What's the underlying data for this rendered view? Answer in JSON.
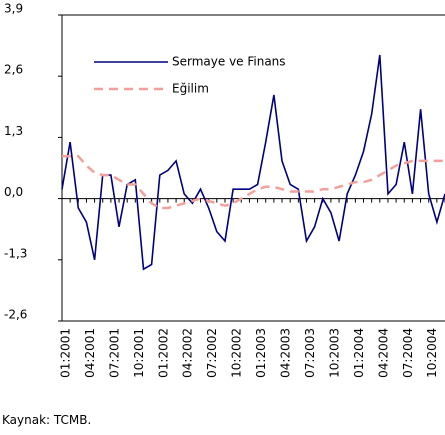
{
  "chart_data": {
    "type": "line",
    "source": "Kaynak: TCMB.",
    "categories": [
      "01:2001",
      null,
      null,
      "04:2001",
      null,
      null,
      "07:2001",
      null,
      null,
      "10:2001",
      null,
      null,
      "01:2002",
      null,
      null,
      "04:2002",
      null,
      null,
      "07:2002",
      null,
      null,
      "10:2002",
      null,
      null,
      "01:2003",
      null,
      null,
      "04:2003",
      null,
      null,
      "07:2003",
      null,
      null,
      "10:2003",
      null,
      null,
      "01:2004",
      null,
      null,
      "04:2004",
      null,
      null,
      "07:2004",
      null,
      null,
      "10:2004",
      null,
      null
    ],
    "series": [
      {
        "name": "Sermaye ve Finans",
        "color": "#000080",
        "dash": false,
        "values": [
          0.2,
          1.2,
          -0.2,
          -0.5,
          -1.3,
          0.5,
          0.5,
          -0.6,
          0.3,
          0.4,
          -1.5,
          -1.4,
          0.5,
          0.6,
          0.8,
          0.1,
          -0.1,
          0.2,
          -0.2,
          -0.7,
          -0.9,
          0.2,
          0.2,
          0.2,
          0.3,
          1.2,
          2.2,
          0.8,
          0.3,
          0.2,
          -0.9,
          -0.6,
          0.0,
          -0.3,
          -0.9,
          0.1,
          0.5,
          1.0,
          1.8,
          3.05,
          0.1,
          0.3,
          1.2,
          0.1,
          1.9,
          0.1,
          -0.5,
          0.1
        ]
      },
      {
        "name": "Eğilim",
        "color": "#f4a09a",
        "dash": true,
        "values": [
          0.9,
          0.9,
          0.9,
          0.7,
          0.55,
          0.5,
          0.5,
          0.4,
          0.3,
          0.3,
          0.1,
          -0.1,
          -0.2,
          -0.2,
          -0.15,
          -0.1,
          -0.05,
          0.0,
          -0.05,
          -0.1,
          -0.15,
          -0.1,
          0.0,
          0.1,
          0.2,
          0.25,
          0.25,
          0.2,
          0.15,
          0.15,
          0.15,
          0.15,
          0.2,
          0.2,
          0.25,
          0.3,
          0.35,
          0.35,
          0.4,
          0.5,
          0.6,
          0.7,
          0.75,
          0.8,
          0.8,
          0.8,
          0.8,
          0.8
        ]
      }
    ],
    "ylim": [
      -2.6,
      3.9
    ],
    "yticks": [
      {
        "value": -2.6,
        "label": "-2,6"
      },
      {
        "value": -1.3,
        "label": "-1,3"
      },
      {
        "value": 0,
        "label": "0,0"
      },
      {
        "value": 1.3,
        "label": "1,3"
      },
      {
        "value": 2.6,
        "label": "2,6"
      },
      {
        "value": 3.9,
        "label": "3,9"
      }
    ]
  }
}
